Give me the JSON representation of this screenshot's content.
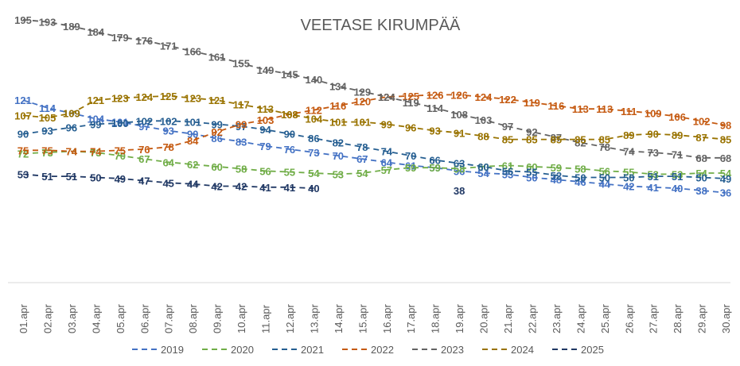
{
  "chart_data": {
    "type": "line",
    "title": "VEETASE KIRUMPÄÄ",
    "xlabel": "",
    "ylabel": "",
    "ylim": [
      0,
      200
    ],
    "grid": false,
    "legend_position": "bottom",
    "categories": [
      "01.apr",
      "02.apr",
      "03.apr",
      "04.apr",
      "05.apr",
      "06.apr",
      "07.apr",
      "08.apr",
      "09.apr",
      "10.apr",
      "11.apr",
      "12.apr",
      "13.apr",
      "14.apr",
      "15.apr",
      "16.apr",
      "17.apr",
      "18.apr",
      "19.apr",
      "20.apr",
      "21.apr",
      "22.apr",
      "23.apr",
      "24.apr",
      "25.apr",
      "26.apr",
      "27.apr",
      "28.apr",
      "29.apr",
      "30.apr"
    ],
    "series": [
      {
        "name": "2019",
        "color": "#4472C4",
        "values": [
          121,
          114,
          109,
          104,
          101,
          97,
          93,
          90,
          86,
          83,
          79,
          76,
          73,
          70,
          67,
          64,
          61,
          59,
          56,
          54,
          53,
          50,
          48,
          46,
          44,
          42,
          41,
          40,
          38,
          36
        ]
      },
      {
        "name": "2020",
        "color": "#70AD47",
        "values": [
          72,
          73,
          74,
          73,
          70,
          67,
          64,
          62,
          60,
          58,
          56,
          55,
          54,
          53,
          54,
          57,
          59,
          59,
          58,
          60,
          61,
          60,
          59,
          58,
          56,
          55,
          53,
          53,
          54,
          54
        ]
      },
      {
        "name": "2021",
        "color": "#255E91",
        "values": [
          90,
          93,
          96,
          99,
          100,
          102,
          102,
          101,
          99,
          97,
          94,
          90,
          86,
          82,
          78,
          74,
          70,
          66,
          63,
          60,
          56,
          55,
          52,
          50,
          50,
          50,
          51,
          51,
          50,
          49
        ]
      },
      {
        "name": "2022",
        "color": "#C55A11",
        "values": [
          75,
          75,
          74,
          74,
          75,
          76,
          78,
          84,
          92,
          99,
          103,
          108,
          112,
          116,
          120,
          124,
          125,
          126,
          126,
          124,
          122,
          119,
          116,
          113,
          113,
          111,
          109,
          106,
          102,
          98
        ]
      },
      {
        "name": "2023",
        "color": "#636363",
        "values": [
          195,
          193,
          189,
          184,
          179,
          176,
          171,
          166,
          161,
          155,
          149,
          145,
          140,
          134,
          129,
          124,
          119,
          114,
          108,
          103,
          97,
          92,
          87,
          82,
          78,
          74,
          73,
          71,
          68,
          68
        ]
      },
      {
        "name": "2024",
        "color": "#997300",
        "values": [
          107,
          105,
          109,
          121,
          123,
          124,
          125,
          123,
          121,
          117,
          113,
          108,
          104,
          101,
          101,
          99,
          96,
          93,
          91,
          88,
          85,
          85,
          85,
          85,
          85,
          89,
          90,
          89,
          87,
          85
        ]
      },
      {
        "name": "2025",
        "color": "#203864",
        "values": [
          53,
          51,
          51,
          50,
          49,
          47,
          45,
          44,
          42,
          42,
          41,
          41,
          40,
          null,
          null,
          null,
          null,
          null,
          38,
          null,
          null,
          null,
          null,
          null,
          null,
          null,
          null,
          null,
          null,
          null
        ]
      }
    ]
  }
}
